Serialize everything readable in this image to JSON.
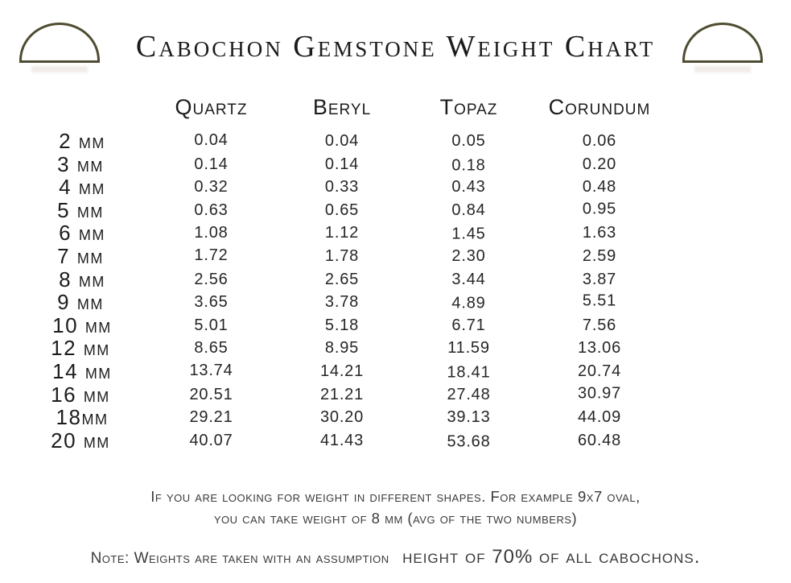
{
  "header": {
    "left_icon": "cabochon-dome-outline",
    "right_icon": "cabochon-dome-outline"
  },
  "chart_data": {
    "type": "table",
    "title": "Cabochon Gemstone Weight Chart",
    "columns": [
      "Quartz",
      "Beryl",
      "Topaz",
      "Corundum"
    ],
    "rows": [
      {
        "label": "2 mm",
        "values": [
          "0.04",
          "0.04",
          "0.05",
          "0.06"
        ]
      },
      {
        "label": "3 mm",
        "values": [
          "0.14",
          "0.14",
          "0.18",
          "0.20"
        ]
      },
      {
        "label": "4 mm",
        "values": [
          "0.32",
          "0.33",
          "0.43",
          "0.48"
        ]
      },
      {
        "label": "5 mm",
        "values": [
          "0.63",
          "0.65",
          "0.84",
          "0.95"
        ]
      },
      {
        "label": "6 mm",
        "values": [
          "1.08",
          "1.12",
          "1.45",
          "1.63"
        ]
      },
      {
        "label": "7 mm",
        "values": [
          "1.72",
          "1.78",
          "2.30",
          "2.59"
        ]
      },
      {
        "label": "8 mm",
        "values": [
          "2.56",
          "2.65",
          "3.44",
          "3.87"
        ]
      },
      {
        "label": "9 mm",
        "values": [
          "3.65",
          "3.78",
          "4.89",
          "5.51"
        ]
      },
      {
        "label": "10 mm",
        "values": [
          "5.01",
          "5.18",
          "6.71",
          "7.56"
        ]
      },
      {
        "label": "12 mm",
        "values": [
          "8.65",
          "8.95",
          "11.59",
          "13.06"
        ]
      },
      {
        "label": "14 mm",
        "values": [
          "13.74",
          "14.21",
          "18.41",
          "20.74"
        ]
      },
      {
        "label": "16 mm",
        "values": [
          "20.51",
          "21.21",
          "27.48",
          "30.97"
        ]
      },
      {
        "label": "18mm",
        "values": [
          "29.21",
          "30.20",
          "39.13",
          "44.09"
        ]
      },
      {
        "label": "20 mm",
        "values": [
          "40.07",
          "41.43",
          "53.68",
          "60.48"
        ]
      }
    ]
  },
  "footer": {
    "shape_note_line1": "If you are looking for weight in different shapes. For example 9x7 oval,",
    "shape_note_line2": "you can take weight of 8 mm (avg of the two numbers)",
    "assumption_prefix": "Note: Weights are taken with an assumption",
    "assumption_emphasis": "height of 70% of all cabochons."
  },
  "colors": {
    "icon_stroke": "#4f4c31",
    "text": "#1f1f1f",
    "note_text": "#3a3a3a",
    "background": "#ffffff"
  }
}
